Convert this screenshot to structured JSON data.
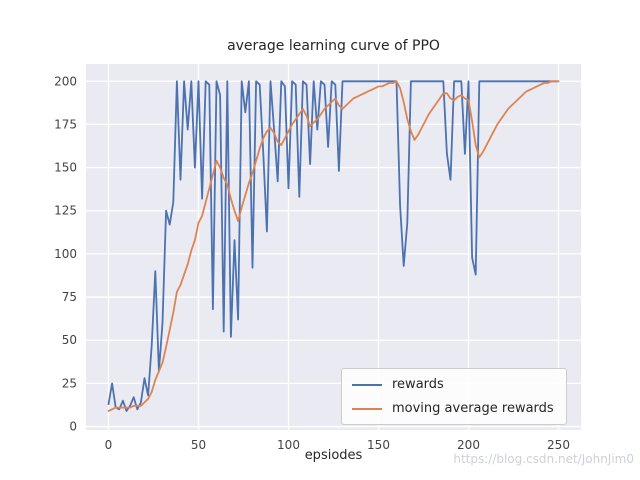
{
  "watermark": {
    "text": "https://blog.csdn.net/JohnJim0"
  },
  "chart_data": {
    "type": "line",
    "title": "average learning curve of PPO",
    "xlabel": "epsiodes",
    "ylabel": "",
    "x_ticks": [
      0,
      50,
      100,
      150,
      200,
      250
    ],
    "y_ticks": [
      0,
      25,
      50,
      75,
      100,
      125,
      150,
      175,
      200
    ],
    "xlim": [
      -12.5,
      262.5
    ],
    "ylim": [
      -2,
      210
    ],
    "grid": true,
    "plot_bg": "#eaeaf2",
    "grid_color": "#ffffff",
    "tick_color": "#444444",
    "legend_position": "lower right",
    "x": [
      0,
      2,
      4,
      6,
      8,
      10,
      12,
      14,
      16,
      18,
      20,
      22,
      24,
      26,
      28,
      30,
      32,
      34,
      36,
      38,
      40,
      42,
      44,
      46,
      48,
      50,
      52,
      54,
      56,
      58,
      60,
      62,
      64,
      66,
      68,
      70,
      72,
      74,
      76,
      78,
      80,
      82,
      84,
      86,
      88,
      90,
      92,
      94,
      96,
      98,
      100,
      102,
      104,
      106,
      108,
      110,
      112,
      114,
      116,
      118,
      120,
      122,
      124,
      126,
      128,
      130,
      132,
      134,
      136,
      138,
      140,
      142,
      144,
      146,
      148,
      150,
      152,
      154,
      156,
      158,
      160,
      162,
      164,
      166,
      168,
      170,
      172,
      174,
      176,
      178,
      180,
      182,
      184,
      186,
      188,
      190,
      192,
      194,
      196,
      198,
      200,
      202,
      204,
      206,
      208,
      210,
      212,
      214,
      216,
      218,
      220,
      222,
      224,
      226,
      228,
      230,
      232,
      234,
      236,
      238,
      240,
      242,
      244,
      246,
      248,
      250
    ],
    "series": [
      {
        "name": "rewards",
        "color": "#4c72b0",
        "values": [
          13,
          25,
          11,
          10,
          15,
          9,
          12,
          17,
          10,
          14,
          28,
          18,
          47,
          90,
          32,
          60,
          125,
          117,
          130,
          200,
          143,
          200,
          172,
          200,
          150,
          200,
          132,
          200,
          198,
          68,
          200,
          192,
          55,
          200,
          52,
          108,
          62,
          200,
          182,
          200,
          92,
          200,
          198,
          158,
          113,
          200,
          172,
          142,
          200,
          197,
          138,
          200,
          198,
          133,
          200,
          198,
          152,
          200,
          172,
          200,
          198,
          162,
          200,
          198,
          148,
          200,
          200,
          200,
          200,
          200,
          200,
          200,
          200,
          200,
          200,
          200,
          200,
          200,
          200,
          200,
          200,
          128,
          93,
          118,
          200,
          200,
          200,
          200,
          200,
          200,
          200,
          200,
          200,
          200,
          158,
          143,
          200,
          200,
          200,
          158,
          200,
          98,
          88,
          200,
          200,
          200,
          200,
          200,
          200,
          200,
          200,
          200,
          200,
          200,
          200,
          200,
          200,
          200,
          200,
          200,
          200,
          200,
          200,
          200,
          200,
          200
        ]
      },
      {
        "name": "moving average rewards",
        "color": "#dd8452",
        "values": [
          9,
          10,
          11,
          11,
          11,
          11,
          11,
          12,
          12,
          12,
          14,
          16,
          20,
          27,
          32,
          37,
          46,
          56,
          66,
          78,
          82,
          88,
          94,
          102,
          108,
          118,
          122,
          130,
          138,
          146,
          154,
          150,
          144,
          140,
          132,
          125,
          119,
          127,
          134,
          141,
          147,
          154,
          161,
          167,
          171,
          173,
          170,
          165,
          163,
          167,
          171,
          175,
          178,
          181,
          184,
          180,
          174,
          176,
          178,
          181,
          184,
          186,
          188,
          190,
          186,
          184,
          186,
          188,
          190,
          191,
          192,
          193,
          194,
          195,
          196,
          197,
          197,
          198,
          199,
          199,
          200,
          196,
          188,
          178,
          171,
          166,
          169,
          173,
          177,
          181,
          184,
          187,
          190,
          193,
          193,
          190,
          189,
          191,
          192,
          190,
          189,
          177,
          163,
          156,
          159,
          163,
          167,
          171,
          175,
          178,
          181,
          184,
          186,
          188,
          190,
          192,
          194,
          195,
          196,
          197,
          198,
          199,
          199,
          200,
          200,
          200
        ]
      }
    ]
  }
}
